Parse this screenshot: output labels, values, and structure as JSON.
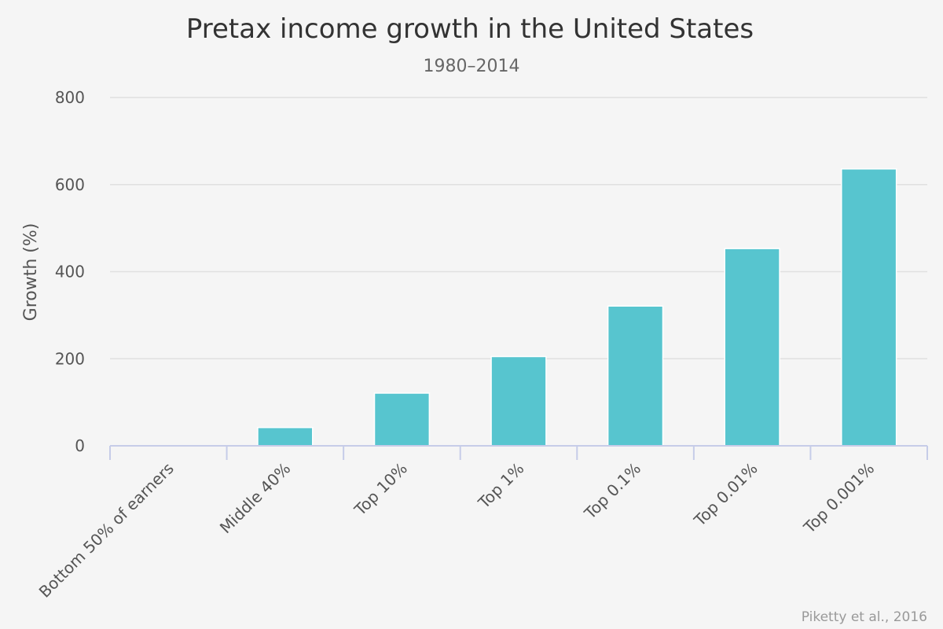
{
  "chart_data": {
    "type": "bar",
    "title": "Pretax income growth in the United States",
    "subtitle": "1980–2014",
    "xlabel": "",
    "ylabel": "Growth (%)",
    "ylim": [
      0,
      800
    ],
    "yticks": [
      0,
      200,
      400,
      600,
      800
    ],
    "grid": true,
    "categories": [
      "Bottom 50% of earners",
      "Middle 40%",
      "Top 10%",
      "Top 1%",
      "Top 0.1%",
      "Top 0.01%",
      "Top 0.001%"
    ],
    "values": [
      1,
      42,
      121,
      205,
      321,
      453,
      636
    ],
    "bar_color": "#57c5cf",
    "credit": "Piketty et al., 2016"
  }
}
